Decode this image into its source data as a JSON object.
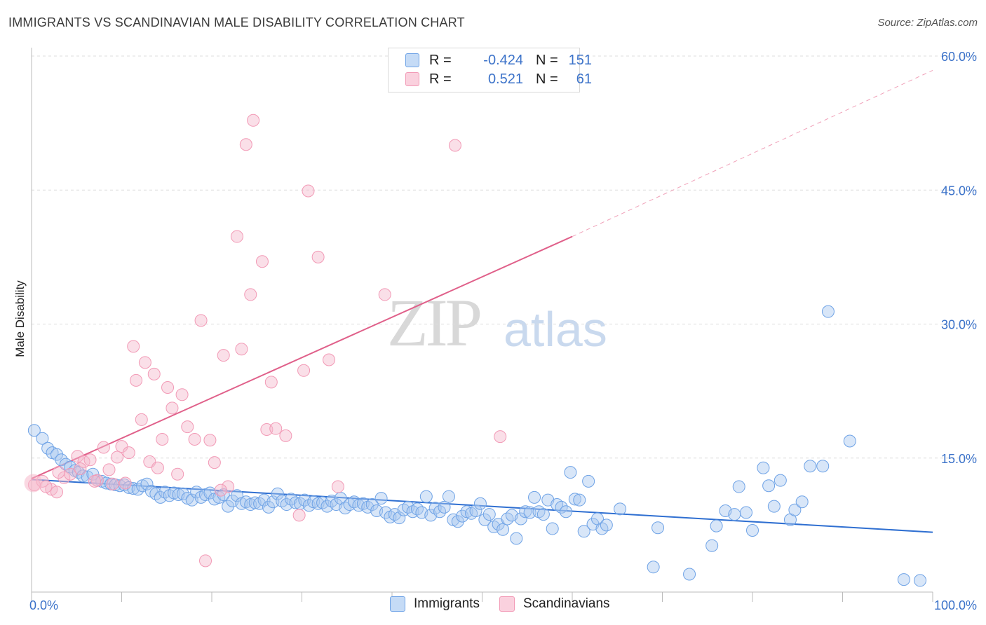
{
  "title": "IMMIGRANTS VS SCANDINAVIAN MALE DISABILITY CORRELATION CHART",
  "source": "Source: ZipAtlas.com",
  "watermark": {
    "zip": "ZIP",
    "atlas": "atlas"
  },
  "legend": {
    "rows": [
      {
        "r_label": "R =",
        "r_value": "-0.424",
        "n_label": "N =",
        "n_value": "151",
        "color": "#a8c8f0"
      },
      {
        "r_label": "R =",
        "r_value": "0.521",
        "n_label": "N =",
        "n_value": "61",
        "color": "#f5b8cb"
      }
    ]
  },
  "bottom_legend": [
    {
      "label": "Immigrants",
      "color": "#a8c8f0"
    },
    {
      "label": "Scandinavians",
      "color": "#f5b8cb"
    }
  ],
  "chart_data": {
    "type": "scatter",
    "title": "IMMIGRANTS VS SCANDINAVIAN MALE DISABILITY CORRELATION CHART",
    "xlabel": "",
    "ylabel": "Male Disability",
    "xlim": [
      0,
      100
    ],
    "ylim": [
      0,
      60
    ],
    "x_tick_labels": [
      "0.0%",
      "100.0%"
    ],
    "y_tick_labels": [
      "15.0%",
      "30.0%",
      "45.0%",
      "60.0%"
    ],
    "y_ticks": [
      15,
      30,
      45,
      60
    ],
    "grid": true,
    "legend_position": "top-center",
    "series": [
      {
        "name": "Immigrants",
        "color": "#6fa3e6",
        "trend": {
          "x0": 0,
          "y0": 12.6,
          "x1": 100,
          "y1": 6.7,
          "dashed_from": null
        },
        "points": [
          [
            0.3,
            18.1
          ],
          [
            1.2,
            17.2
          ],
          [
            1.8,
            16.1
          ],
          [
            2.3,
            15.6
          ],
          [
            2.8,
            15.4
          ],
          [
            3.3,
            14.8
          ],
          [
            3.8,
            14.3
          ],
          [
            4.3,
            14.0
          ],
          [
            4.8,
            13.6
          ],
          [
            5.2,
            13.4
          ],
          [
            5.7,
            13.0
          ],
          [
            6.2,
            12.9
          ],
          [
            6.8,
            13.2
          ],
          [
            7.3,
            12.5
          ],
          [
            7.8,
            12.4
          ],
          [
            8.3,
            12.2
          ],
          [
            8.8,
            12.1
          ],
          [
            9.3,
            12.0
          ],
          [
            9.8,
            11.9
          ],
          [
            10.3,
            12.0
          ],
          [
            10.8,
            11.7
          ],
          [
            11.3,
            11.6
          ],
          [
            11.8,
            11.5
          ],
          [
            12.3,
            11.9
          ],
          [
            12.8,
            12.1
          ],
          [
            13.3,
            11.3
          ],
          [
            13.8,
            11.0
          ],
          [
            14.3,
            10.6
          ],
          [
            14.8,
            11.2
          ],
          [
            15.3,
            10.8
          ],
          [
            15.8,
            11.1
          ],
          [
            16.3,
            10.9
          ],
          [
            16.8,
            11.0
          ],
          [
            17.3,
            10.5
          ],
          [
            17.8,
            10.3
          ],
          [
            18.3,
            11.2
          ],
          [
            18.8,
            10.6
          ],
          [
            19.3,
            10.9
          ],
          [
            19.8,
            11.1
          ],
          [
            20.3,
            10.4
          ],
          [
            20.8,
            10.6
          ],
          [
            21.3,
            10.9
          ],
          [
            21.8,
            9.6
          ],
          [
            22.3,
            10.2
          ],
          [
            22.8,
            10.8
          ],
          [
            23.3,
            9.9
          ],
          [
            23.8,
            10.1
          ],
          [
            24.3,
            9.8
          ],
          [
            24.8,
            10.0
          ],
          [
            25.3,
            9.9
          ],
          [
            25.8,
            10.3
          ],
          [
            26.3,
            9.5
          ],
          [
            26.8,
            10.1
          ],
          [
            27.3,
            11.0
          ],
          [
            27.8,
            10.2
          ],
          [
            28.3,
            9.8
          ],
          [
            28.8,
            10.4
          ],
          [
            29.3,
            10.0
          ],
          [
            29.8,
            9.9
          ],
          [
            30.3,
            10.3
          ],
          [
            30.8,
            9.7
          ],
          [
            31.3,
            10.1
          ],
          [
            31.8,
            9.9
          ],
          [
            32.3,
            10.0
          ],
          [
            32.8,
            9.6
          ],
          [
            33.3,
            10.2
          ],
          [
            33.8,
            9.8
          ],
          [
            34.3,
            10.5
          ],
          [
            34.8,
            9.4
          ],
          [
            35.3,
            9.8
          ],
          [
            35.8,
            10.1
          ],
          [
            36.3,
            9.7
          ],
          [
            36.8,
            9.9
          ],
          [
            37.3,
            9.5
          ],
          [
            37.8,
            9.8
          ],
          [
            38.3,
            9.1
          ],
          [
            38.8,
            10.5
          ],
          [
            39.3,
            8.9
          ],
          [
            39.8,
            8.4
          ],
          [
            40.3,
            8.7
          ],
          [
            40.8,
            8.3
          ],
          [
            41.3,
            9.2
          ],
          [
            41.8,
            9.5
          ],
          [
            42.3,
            9.0
          ],
          [
            42.8,
            9.3
          ],
          [
            43.3,
            8.9
          ],
          [
            43.8,
            10.7
          ],
          [
            44.3,
            8.6
          ],
          [
            44.8,
            9.4
          ],
          [
            45.3,
            9.0
          ],
          [
            45.8,
            9.5
          ],
          [
            46.3,
            10.7
          ],
          [
            46.8,
            8.1
          ],
          [
            47.3,
            7.9
          ],
          [
            47.8,
            8.5
          ],
          [
            48.3,
            9.0
          ],
          [
            48.8,
            8.8
          ],
          [
            49.3,
            9.1
          ],
          [
            49.8,
            9.9
          ],
          [
            50.3,
            8.1
          ],
          [
            50.8,
            8.7
          ],
          [
            51.3,
            7.3
          ],
          [
            51.8,
            7.6
          ],
          [
            52.3,
            7.0
          ],
          [
            52.8,
            8.2
          ],
          [
            53.3,
            8.6
          ],
          [
            53.8,
            6.0
          ],
          [
            54.3,
            8.2
          ],
          [
            54.8,
            9.0
          ],
          [
            55.3,
            8.9
          ],
          [
            55.8,
            10.6
          ],
          [
            56.3,
            9.0
          ],
          [
            56.8,
            8.7
          ],
          [
            57.3,
            10.3
          ],
          [
            57.8,
            7.1
          ],
          [
            58.3,
            9.8
          ],
          [
            58.8,
            9.5
          ],
          [
            59.3,
            9.0
          ],
          [
            59.8,
            13.4
          ],
          [
            60.3,
            10.4
          ],
          [
            60.8,
            10.3
          ],
          [
            61.3,
            6.8
          ],
          [
            61.8,
            12.4
          ],
          [
            62.3,
            7.6
          ],
          [
            62.8,
            8.2
          ],
          [
            63.3,
            7.1
          ],
          [
            63.8,
            7.5
          ],
          [
            69.0,
            2.8
          ],
          [
            69.5,
            7.2
          ],
          [
            73.0,
            2.0
          ],
          [
            75.5,
            5.2
          ],
          [
            76.0,
            7.4
          ],
          [
            77.0,
            9.1
          ],
          [
            78.5,
            11.8
          ],
          [
            80.0,
            6.9
          ],
          [
            81.2,
            13.9
          ],
          [
            81.8,
            11.9
          ],
          [
            82.4,
            9.6
          ],
          [
            83.1,
            12.5
          ],
          [
            84.2,
            8.1
          ],
          [
            86.4,
            14.1
          ],
          [
            87.8,
            14.1
          ],
          [
            78.0,
            8.7
          ],
          [
            79.3,
            8.9
          ],
          [
            84.7,
            9.2
          ],
          [
            85.5,
            10.1
          ],
          [
            88.4,
            31.4
          ],
          [
            90.8,
            16.9
          ],
          [
            96.8,
            1.4
          ],
          [
            98.6,
            1.3
          ],
          [
            65.3,
            9.3
          ]
        ]
      },
      {
        "name": "Scandinavians",
        "color": "#f29ab6",
        "trend": {
          "x0": 0,
          "y0": 12.7,
          "x1": 60,
          "y1": 39.8,
          "dashed_from": 60,
          "dash_x1": 100,
          "dash_y1": 58.4
        },
        "points": [
          [
            0.3,
            12.0
          ],
          [
            1.2,
            12.4
          ],
          [
            2.2,
            11.5
          ],
          [
            2.8,
            11.2
          ],
          [
            3.6,
            12.8
          ],
          [
            4.3,
            13.2
          ],
          [
            5.1,
            15.2
          ],
          [
            5.8,
            14.6
          ],
          [
            6.5,
            14.8
          ],
          [
            7.3,
            12.5
          ],
          [
            8.0,
            16.2
          ],
          [
            8.6,
            13.7
          ],
          [
            9.0,
            12.1
          ],
          [
            9.5,
            15.1
          ],
          [
            10.0,
            16.3
          ],
          [
            10.4,
            12.2
          ],
          [
            10.8,
            15.6
          ],
          [
            11.3,
            27.5
          ],
          [
            11.6,
            23.7
          ],
          [
            12.2,
            19.3
          ],
          [
            12.6,
            25.7
          ],
          [
            13.1,
            14.6
          ],
          [
            13.6,
            24.4
          ],
          [
            14.0,
            13.9
          ],
          [
            14.5,
            17.1
          ],
          [
            15.1,
            22.9
          ],
          [
            15.6,
            20.6
          ],
          [
            16.2,
            13.2
          ],
          [
            16.7,
            22.1
          ],
          [
            17.3,
            18.5
          ],
          [
            18.1,
            17.1
          ],
          [
            18.8,
            30.4
          ],
          [
            19.3,
            3.5
          ],
          [
            19.8,
            17.0
          ],
          [
            20.3,
            14.5
          ],
          [
            21.3,
            26.5
          ],
          [
            21.8,
            11.8
          ],
          [
            22.8,
            39.8
          ],
          [
            23.3,
            27.2
          ],
          [
            23.8,
            50.1
          ],
          [
            24.3,
            33.3
          ],
          [
            24.6,
            52.8
          ],
          [
            25.6,
            37.0
          ],
          [
            26.1,
            18.2
          ],
          [
            26.6,
            23.5
          ],
          [
            27.1,
            18.3
          ],
          [
            28.2,
            17.5
          ],
          [
            29.7,
            8.6
          ],
          [
            30.2,
            24.8
          ],
          [
            30.7,
            44.9
          ],
          [
            31.8,
            37.5
          ],
          [
            33.0,
            26.0
          ],
          [
            34.0,
            11.8
          ],
          [
            39.2,
            33.3
          ],
          [
            47.0,
            50.0
          ],
          [
            52.0,
            17.4
          ],
          [
            7.0,
            12.4
          ],
          [
            3.0,
            13.4
          ],
          [
            5.4,
            13.8
          ],
          [
            1.6,
            11.8
          ],
          [
            21.0,
            11.4
          ]
        ]
      }
    ]
  }
}
